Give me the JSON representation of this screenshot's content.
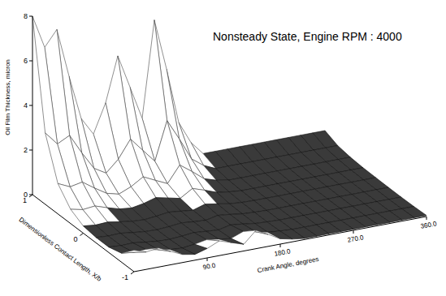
{
  "chart_data": {
    "type": "surface",
    "title": "Nonsteady State, Engine RPM : 4000",
    "x_label": "Crank Angle, degrees",
    "y_label": "Dimensionless Contact Length, X/b",
    "z_label": "Oil Film Thickness, micron",
    "x": [
      0,
      15,
      30,
      45,
      60,
      75,
      90,
      105,
      120,
      135,
      150,
      165,
      180,
      195,
      210,
      225,
      240,
      255,
      270,
      285,
      300,
      315,
      330,
      345,
      360
    ],
    "y": [
      -1,
      -0.75,
      -0.5,
      -0.25,
      0,
      0.25,
      0.5,
      0.75,
      1
    ],
    "z": [
      [
        0.96,
        0.4,
        0.24,
        0.24,
        0.32,
        0.64,
        1.36,
        3.2,
        8
      ],
      [
        0.78,
        0.33,
        0.2,
        0.2,
        0.26,
        0.52,
        1.11,
        2.6,
        6.5
      ],
      [
        0.86,
        0.36,
        0.22,
        0.22,
        0.29,
        0.58,
        1.22,
        2.88,
        7.2
      ],
      [
        0.6,
        0.25,
        0.15,
        0.15,
        0.2,
        0.4,
        0.85,
        2,
        5
      ],
      [
        0.36,
        0.15,
        0.09,
        0.09,
        0.12,
        0.24,
        0.51,
        1.2,
        3
      ],
      [
        0.26,
        0.11,
        0.07,
        0.07,
        0.09,
        0.18,
        0.37,
        0.88,
        2.2
      ],
      [
        0.42,
        0.18,
        0.11,
        0.11,
        0.14,
        0.28,
        0.6,
        1.4,
        3.5
      ],
      [
        0.66,
        0.28,
        0.17,
        0.17,
        0.22,
        0.44,
        0.94,
        2.2,
        5.5
      ],
      [
        0.48,
        0.2,
        0.12,
        0.12,
        0.16,
        0.32,
        0.68,
        1.6,
        4
      ],
      [
        0.3,
        0.13,
        0.08,
        0.08,
        0.1,
        0.2,
        0.43,
        1,
        2.5
      ],
      [
        0.82,
        0.34,
        0.2,
        0.2,
        0.27,
        0.54,
        1.16,
        2.72,
        6.8
      ],
      [
        0.54,
        0.23,
        0.14,
        0.14,
        0.18,
        0.36,
        0.77,
        1.8,
        4.5
      ],
      [
        0.24,
        0.1,
        0.06,
        0.06,
        0.08,
        0.16,
        0.34,
        0.8,
        2
      ],
      [
        0.12,
        0.05,
        0.03,
        0.03,
        0.04,
        0.08,
        0.17,
        0.4,
        1
      ],
      [
        0.05,
        0.02,
        0.01,
        0.01,
        0.02,
        0.03,
        0.07,
        0.16,
        0.4
      ],
      [
        0.05,
        0.02,
        0.01,
        0.01,
        0.02,
        0.03,
        0.07,
        0.16,
        0.4
      ],
      [
        0.05,
        0.02,
        0.01,
        0.01,
        0.02,
        0.03,
        0.07,
        0.16,
        0.4
      ],
      [
        0.05,
        0.02,
        0.01,
        0.01,
        0.02,
        0.03,
        0.07,
        0.16,
        0.4
      ],
      [
        0.05,
        0.02,
        0.01,
        0.01,
        0.02,
        0.03,
        0.07,
        0.16,
        0.4
      ],
      [
        0.05,
        0.02,
        0.01,
        0.01,
        0.02,
        0.03,
        0.07,
        0.16,
        0.4
      ],
      [
        0.05,
        0.02,
        0.01,
        0.01,
        0.02,
        0.03,
        0.07,
        0.16,
        0.4
      ],
      [
        0.05,
        0.02,
        0.01,
        0.01,
        0.02,
        0.03,
        0.07,
        0.16,
        0.4
      ],
      [
        0.05,
        0.02,
        0.01,
        0.01,
        0.02,
        0.03,
        0.07,
        0.16,
        0.4
      ],
      [
        0.05,
        0.02,
        0.01,
        0.01,
        0.02,
        0.03,
        0.07,
        0.16,
        0.4
      ],
      [
        0.05,
        0.02,
        0.01,
        0.01,
        0.02,
        0.03,
        0.07,
        0.16,
        0.4
      ]
    ],
    "xlim": [
      0,
      360
    ],
    "ylim": [
      -1,
      1
    ],
    "zlim": [
      0,
      8
    ],
    "xticks": [
      {
        "value": 90,
        "label": "90.0"
      },
      {
        "value": 180,
        "label": "180.0"
      },
      {
        "value": 270,
        "label": "270.0"
      },
      {
        "value": 360,
        "label": "360.0"
      }
    ],
    "yticks": [
      -1,
      0,
      1
    ],
    "zticks": [
      0,
      2,
      4,
      6,
      8
    ]
  }
}
